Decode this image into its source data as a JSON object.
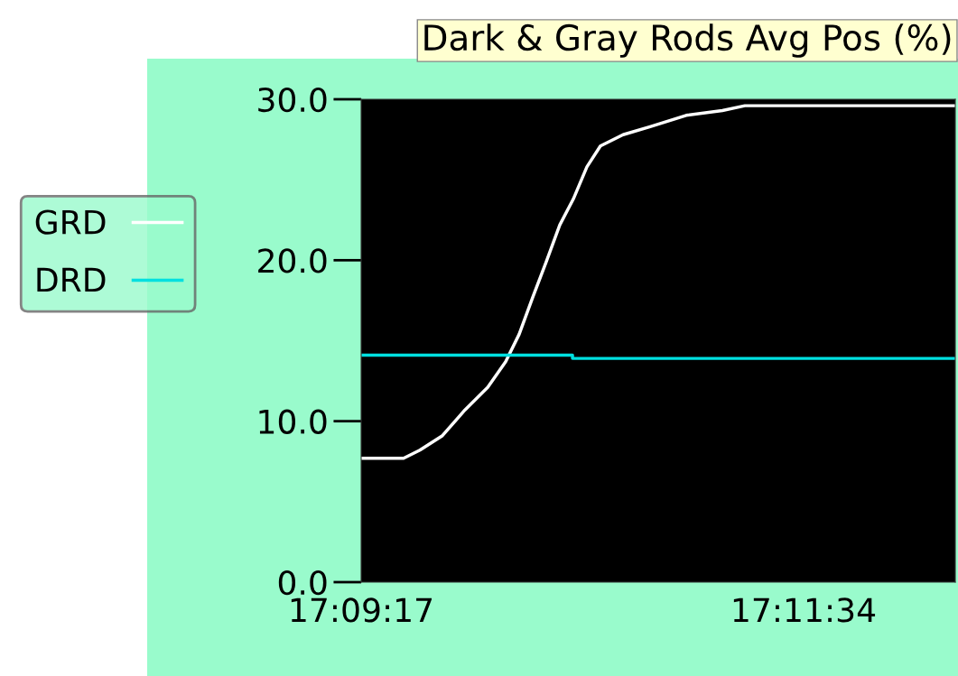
{
  "chart_data": {
    "type": "line",
    "title": "Dark & Gray Rods Avg Pos (%)",
    "xlim": [
      17.15472,
      17.20583
    ],
    "xticks": [
      {
        "value": 17.15472,
        "label": "17:09:17"
      },
      {
        "value": 17.19278,
        "label": "17:11:34"
      }
    ],
    "ylim": [
      0,
      30
    ],
    "yticks": [
      {
        "value": 0,
        "label": "0.0"
      },
      {
        "value": 10,
        "label": "10.0"
      },
      {
        "value": 20,
        "label": "20.0"
      },
      {
        "value": 30,
        "label": "30.0"
      }
    ],
    "grid": false,
    "legend": "left",
    "series": [
      {
        "name": "GRD",
        "color": "#ffffff",
        "x": [
          17.15472,
          17.15837,
          17.15977,
          17.16171,
          17.16365,
          17.1656,
          17.16715,
          17.16831,
          17.16948,
          17.17064,
          17.17181,
          17.17297,
          17.17414,
          17.1753,
          17.17725,
          17.17958,
          17.18268,
          17.18579,
          17.18773,
          17.20583
        ],
        "values": [
          7.7,
          7.7,
          8.2,
          9.1,
          10.7,
          12.1,
          13.7,
          15.4,
          17.7,
          19.9,
          22.2,
          23.8,
          25.8,
          27.1,
          27.8,
          28.3,
          29.0,
          29.3,
          29.6,
          29.6
        ]
      },
      {
        "name": "DRD",
        "color": "#00e0e0",
        "type": "step",
        "x": [
          17.15472,
          17.17282,
          17.1729,
          17.20583
        ],
        "values": [
          14.1,
          14.1,
          13.9,
          13.9
        ]
      }
    ]
  }
}
